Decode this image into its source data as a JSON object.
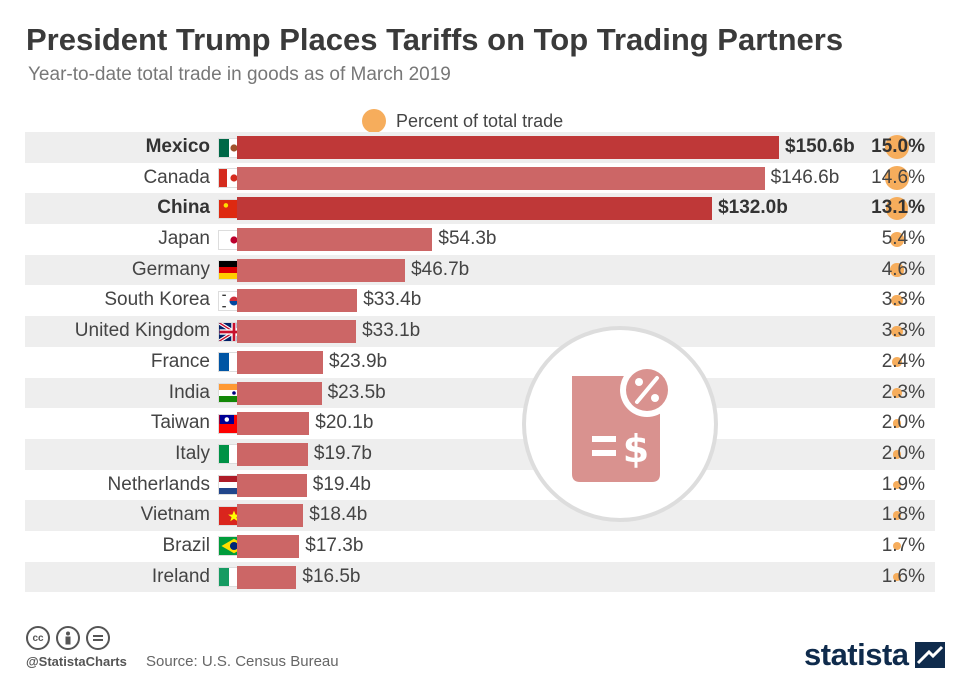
{
  "header": {
    "title": "President Trump Places Tariffs on Top Trading Partners",
    "subtitle": "Year-to-date total trade in goods as of March 2019"
  },
  "legend": {
    "label": "Percent of total trade",
    "color": "#f6ad5c"
  },
  "colors": {
    "bar": "#cc6666",
    "bar_highlight": "#bf3838",
    "row_alt": "#eeeeee"
  },
  "chart_data": {
    "type": "bar",
    "orientation": "horizontal",
    "title": "President Trump Places Tariffs on Top Trading Partners",
    "subtitle": "Year-to-date total trade in goods as of March 2019",
    "categories": [
      "Mexico",
      "Canada",
      "China",
      "Japan",
      "Germany",
      "South Korea",
      "United Kingdom",
      "France",
      "India",
      "Taiwan",
      "Italy",
      "Netherlands",
      "Vietnam",
      "Brazil",
      "Ireland"
    ],
    "series": [
      {
        "name": "",
        "values": [
          150.6,
          146.6,
          132.0,
          54.3,
          46.7,
          33.4,
          33.1,
          23.9,
          23.5,
          20.1,
          19.7,
          19.4,
          18.4,
          17.3,
          16.5
        ]
      },
      {
        "name": "Percent of total trade",
        "values": [
          15.0,
          14.6,
          13.1,
          5.4,
          4.6,
          3.3,
          3.3,
          2.4,
          2.3,
          2.0,
          2.0,
          1.9,
          1.8,
          1.7,
          1.6
        ]
      }
    ],
    "highlighted": [
      "Mexico",
      "China"
    ],
    "value_labels": [
      "$150.6b",
      "$146.6b",
      "$132.0b",
      "$54.3b",
      "$46.7b",
      "$33.4b",
      "$33.1b",
      "$23.9b",
      "$23.5b",
      "$20.1b",
      "$19.7b",
      "$19.4b",
      "$18.4b",
      "$17.3b",
      "$16.5b"
    ],
    "percent_labels": [
      "15.0%",
      "14.6%",
      "13.1%",
      "5.4%",
      "4.6%",
      "3.3%",
      "3.3%",
      "2.4%",
      "2.3%",
      "2.0%",
      "2.0%",
      "1.9%",
      "1.8%",
      "1.7%",
      "1.6%"
    ],
    "flags": [
      "mexico-flag-icon",
      "canada-flag-icon",
      "china-flag-icon",
      "japan-flag-icon",
      "germany-flag-icon",
      "south-korea-flag-icon",
      "uk-flag-icon",
      "france-flag-icon",
      "india-flag-icon",
      "taiwan-flag-icon",
      "italy-flag-icon",
      "netherlands-flag-icon",
      "vietnam-flag-icon",
      "brazil-flag-icon",
      "ireland-flag-icon"
    ],
    "legend_position": "top",
    "grid": false
  },
  "footer": {
    "handle": "@StatistaCharts",
    "source": "Source: U.S. Census Bureau",
    "brand": "statista",
    "license_icons": [
      "cc-icon",
      "by-icon",
      "nd-icon"
    ]
  }
}
